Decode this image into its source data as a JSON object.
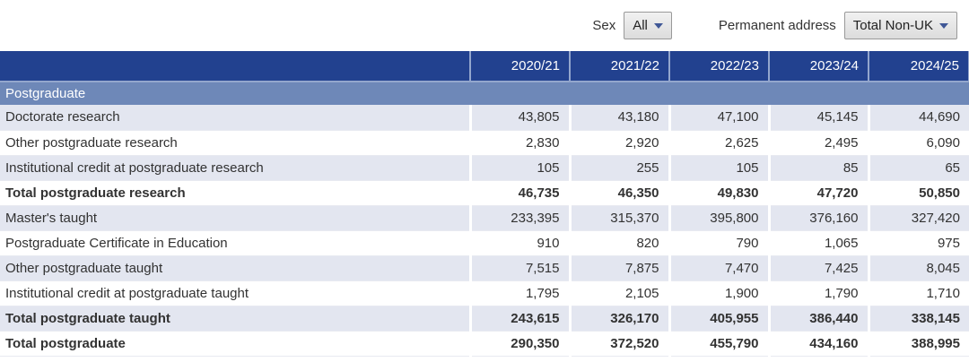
{
  "filters": {
    "sex": {
      "label": "Sex",
      "value": "All"
    },
    "permanent_address": {
      "label": "Permanent address",
      "value": "Total Non-UK"
    }
  },
  "table": {
    "section": "Postgraduate",
    "columns": [
      "2020/21",
      "2021/22",
      "2022/23",
      "2023/24",
      "2024/25"
    ],
    "rows": [
      {
        "label": "Doctorate research",
        "bold": false,
        "values": [
          "43,805",
          "43,180",
          "47,100",
          "45,145",
          "44,690"
        ]
      },
      {
        "label": "Other postgraduate research",
        "bold": false,
        "values": [
          "2,830",
          "2,920",
          "2,625",
          "2,495",
          "6,090"
        ]
      },
      {
        "label": "Institutional credit at postgraduate research",
        "bold": false,
        "values": [
          "105",
          "255",
          "105",
          "85",
          "65"
        ]
      },
      {
        "label": "Total postgraduate research",
        "bold": true,
        "values": [
          "46,735",
          "46,350",
          "49,830",
          "47,720",
          "50,850"
        ]
      },
      {
        "label": "Master's taught",
        "bold": false,
        "values": [
          "233,395",
          "315,370",
          "395,800",
          "376,160",
          "327,420"
        ]
      },
      {
        "label": "Postgraduate Certificate in Education",
        "bold": false,
        "values": [
          "910",
          "820",
          "790",
          "1,065",
          "975"
        ]
      },
      {
        "label": "Other postgraduate taught",
        "bold": false,
        "values": [
          "7,515",
          "7,875",
          "7,470",
          "7,425",
          "8,045"
        ]
      },
      {
        "label": "Institutional credit at postgraduate taught",
        "bold": false,
        "values": [
          "1,795",
          "2,105",
          "1,900",
          "1,790",
          "1,710"
        ]
      },
      {
        "label": "Total postgraduate taught",
        "bold": true,
        "values": [
          "243,615",
          "326,170",
          "405,955",
          "386,440",
          "338,145"
        ]
      },
      {
        "label": "Total postgraduate",
        "bold": true,
        "values": [
          "290,350",
          "372,520",
          "455,790",
          "434,160",
          "388,995"
        ]
      }
    ]
  },
  "icons": {
    "sex_dropdown_caret": "chevron-down-icon",
    "address_dropdown_caret": "chevron-down-icon"
  },
  "colors": {
    "header_blue": "#22418f",
    "header_separator": "#93a6cd",
    "section_blue": "#6e88b8",
    "row_alt": "#e3e6f0",
    "text": "#323232"
  }
}
